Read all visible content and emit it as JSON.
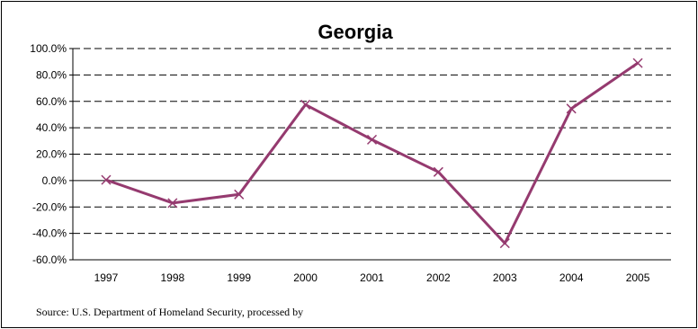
{
  "chart_data": {
    "type": "line",
    "title": "Georgia",
    "xlabel": "",
    "ylabel": "",
    "categories": [
      "1997",
      "1998",
      "1999",
      "2000",
      "2001",
      "2002",
      "2003",
      "2004",
      "2005"
    ],
    "series": [
      {
        "values": [
          0.5,
          -17.0,
          -10.5,
          57.5,
          31.0,
          6.5,
          -47.5,
          54.5,
          89.0
        ],
        "color": "#953a6f",
        "marker": "x"
      }
    ],
    "ylim": [
      -60,
      100
    ],
    "yticks": [
      100,
      80,
      60,
      40,
      20,
      0,
      -20,
      -40,
      -60
    ],
    "ytick_labels": [
      "100.0%",
      "80.0%",
      "60.0%",
      "40.0%",
      "20.0%",
      "0.0%",
      "-20.0%",
      "-40.0%",
      "-60.0%"
    ],
    "grid": "dashed horizontal",
    "legend": "none"
  },
  "source_note": "Source: U.S. Department of Homeland Security, processed by"
}
